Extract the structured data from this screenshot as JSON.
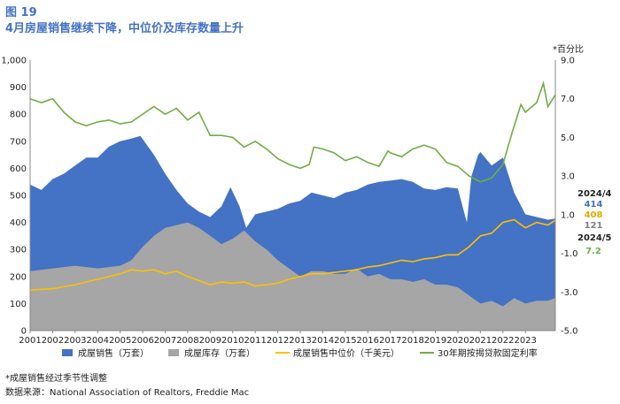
{
  "figure": {
    "number": "图 19",
    "title": "4月房屋销售继续下降，中位价及库存数量上升"
  },
  "notes": {
    "footnote": "*成屋销售经过季节性调整",
    "source": "数据来源：National Association of Realtors, Freddie Mac"
  },
  "side_labels": {
    "date_1": "2024/4",
    "sales_value": "414",
    "price_value": "408",
    "inventory_value": "121",
    "date_2": "2024/5",
    "rate_value": "7.2"
  },
  "chart_data": {
    "type": "area",
    "y_left": {
      "ticks": [
        "1,000",
        "900",
        "800",
        "700",
        "600",
        "500",
        "400",
        "300",
        "200",
        "100",
        "0"
      ],
      "lim": [
        0,
        1000
      ]
    },
    "y_right": {
      "label": "*百分比",
      "ticks": [
        "9.0",
        "7.0",
        "5.0",
        "3.0",
        "1.0",
        "-1.0",
        "-3.0",
        "-5.0"
      ],
      "lim": [
        -5,
        9
      ]
    },
    "x_ticks": [
      "2001",
      "2002",
      "2003",
      "2004",
      "2005",
      "2006",
      "2007",
      "2008",
      "2009",
      "2010",
      "2011",
      "2012",
      "2013",
      "2014",
      "2015",
      "2016",
      "2017",
      "2018",
      "2019",
      "2020",
      "2021",
      "2022",
      "2023"
    ],
    "x_range": [
      2001,
      2024.33
    ],
    "colors": {
      "sales": "#4472C4",
      "inventory": "#A6A6A6",
      "price": "#FFC000",
      "rate": "#70AD47",
      "sales_label": "#4472C4",
      "price_label": "#E6A800",
      "inventory_label": "#808080",
      "rate_label": "#70AD47"
    },
    "series": [
      {
        "name": "成屋销售（万套）",
        "axis": "left",
        "x": [
          2001.0,
          2001.5,
          2002.0,
          2002.5,
          2003.0,
          2003.5,
          2004.0,
          2004.5,
          2005.0,
          2005.5,
          2005.9,
          2006.5,
          2007.0,
          2007.5,
          2008.0,
          2008.5,
          2009.0,
          2009.5,
          2009.9,
          2010.3,
          2010.6,
          2011.0,
          2011.5,
          2012.0,
          2012.5,
          2013.0,
          2013.5,
          2014.0,
          2014.5,
          2015.0,
          2015.5,
          2016.0,
          2016.5,
          2017.0,
          2017.5,
          2018.0,
          2018.5,
          2019.0,
          2019.5,
          2020.0,
          2020.4,
          2020.6,
          2020.9,
          2021.0,
          2021.5,
          2022.0,
          2022.5,
          2023.0,
          2023.5,
          2024.0,
          2024.33
        ],
        "values": [
          540,
          520,
          560,
          580,
          610,
          640,
          640,
          680,
          700,
          710,
          720,
          650,
          580,
          520,
          470,
          440,
          420,
          460,
          530,
          460,
          380,
          430,
          440,
          450,
          470,
          480,
          510,
          500,
          490,
          510,
          520,
          540,
          550,
          555,
          560,
          550,
          525,
          520,
          530,
          525,
          400,
          570,
          650,
          660,
          610,
          640,
          510,
          430,
          420,
          410,
          414
        ]
      },
      {
        "name": "成屋库存（万套）",
        "axis": "left",
        "x": [
          2001.0,
          2002.0,
          2003.0,
          2004.0,
          2005.0,
          2005.5,
          2006.0,
          2006.5,
          2007.0,
          2007.5,
          2008.0,
          2008.5,
          2009.0,
          2009.5,
          2010.0,
          2010.5,
          2011.0,
          2011.5,
          2012.0,
          2012.5,
          2013.0,
          2013.5,
          2014.0,
          2014.5,
          2015.0,
          2015.5,
          2016.0,
          2016.5,
          2017.0,
          2017.5,
          2018.0,
          2018.5,
          2019.0,
          2019.5,
          2020.0,
          2020.5,
          2021.0,
          2021.5,
          2022.0,
          2022.5,
          2023.0,
          2023.5,
          2024.0,
          2024.33
        ],
        "values": [
          220,
          230,
          240,
          230,
          240,
          260,
          310,
          350,
          380,
          390,
          400,
          380,
          350,
          320,
          340,
          370,
          330,
          300,
          260,
          230,
          200,
          220,
          220,
          210,
          210,
          230,
          200,
          210,
          190,
          190,
          180,
          190,
          170,
          170,
          160,
          130,
          100,
          110,
          90,
          120,
          100,
          110,
          110,
          121
        ]
      },
      {
        "name": "成屋销售中位价（千美元）",
        "axis": "left",
        "x": [
          2001.0,
          2002.0,
          2003.0,
          2004.0,
          2005.0,
          2005.5,
          2006.0,
          2006.5,
          2007.0,
          2007.5,
          2008.0,
          2008.5,
          2009.0,
          2009.5,
          2010.0,
          2010.5,
          2011.0,
          2011.5,
          2012.0,
          2012.5,
          2013.0,
          2013.5,
          2014.0,
          2014.5,
          2015.0,
          2015.5,
          2016.0,
          2016.5,
          2017.0,
          2017.5,
          2018.0,
          2018.5,
          2019.0,
          2019.5,
          2020.0,
          2020.5,
          2021.0,
          2021.5,
          2022.0,
          2022.5,
          2023.0,
          2023.5,
          2024.0,
          2024.33
        ],
        "values": [
          150,
          155,
          170,
          190,
          210,
          225,
          220,
          225,
          210,
          220,
          200,
          185,
          170,
          180,
          175,
          180,
          165,
          170,
          175,
          190,
          200,
          210,
          210,
          215,
          220,
          225,
          235,
          240,
          250,
          260,
          255,
          265,
          270,
          280,
          280,
          310,
          350,
          360,
          400,
          410,
          380,
          400,
          390,
          408
        ]
      },
      {
        "name": "30年期按揭贷款固定利率",
        "axis": "right",
        "x": [
          2001.0,
          2001.5,
          2002.0,
          2002.5,
          2003.0,
          2003.5,
          2004.0,
          2004.5,
          2005.0,
          2005.5,
          2006.0,
          2006.5,
          2007.0,
          2007.5,
          2008.0,
          2008.5,
          2009.0,
          2009.5,
          2010.0,
          2010.5,
          2011.0,
          2011.5,
          2012.0,
          2012.5,
          2013.0,
          2013.4,
          2013.6,
          2014.0,
          2014.5,
          2015.0,
          2015.5,
          2016.0,
          2016.5,
          2016.9,
          2017.0,
          2017.5,
          2018.0,
          2018.5,
          2019.0,
          2019.5,
          2020.0,
          2020.5,
          2021.0,
          2021.5,
          2022.0,
          2022.4,
          2022.8,
          2023.0,
          2023.5,
          2023.8,
          2024.0,
          2024.33
        ],
        "values": [
          7.0,
          6.8,
          7.0,
          6.3,
          5.8,
          5.6,
          5.8,
          5.9,
          5.7,
          5.8,
          6.2,
          6.6,
          6.2,
          6.5,
          5.9,
          6.3,
          5.1,
          5.1,
          5.0,
          4.5,
          4.8,
          4.4,
          3.9,
          3.6,
          3.4,
          3.6,
          4.5,
          4.4,
          4.2,
          3.8,
          4.0,
          3.7,
          3.5,
          4.3,
          4.2,
          4.0,
          4.4,
          4.6,
          4.4,
          3.7,
          3.5,
          3.0,
          2.7,
          2.9,
          3.6,
          5.2,
          6.7,
          6.3,
          6.8,
          7.8,
          6.6,
          7.2
        ]
      }
    ]
  }
}
